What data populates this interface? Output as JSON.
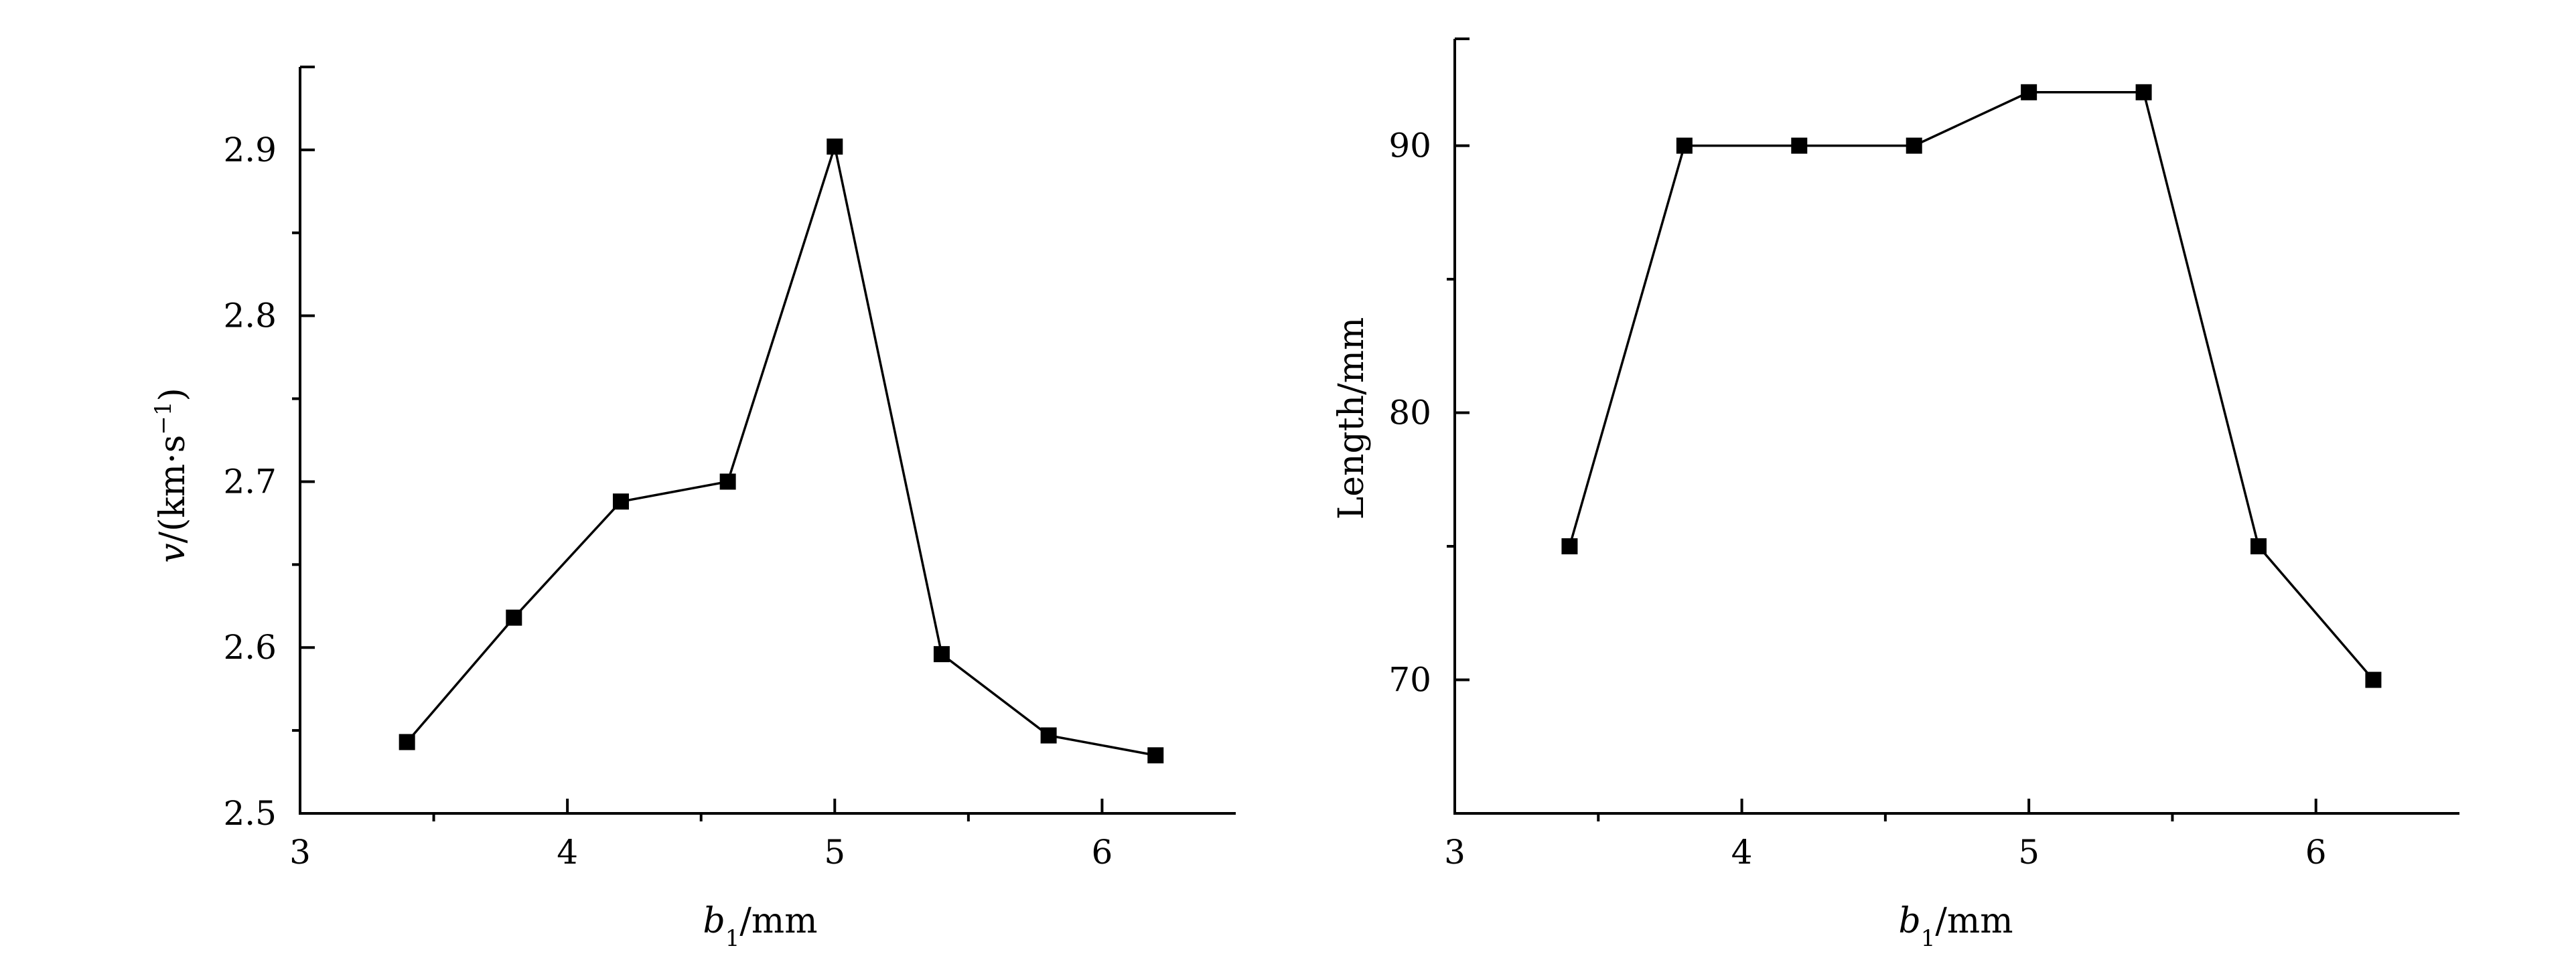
{
  "chart_data": [
    {
      "type": "line",
      "xlabel": {
        "main": "b",
        "sub": "1",
        "unit": "/mm"
      },
      "ylabel": {
        "main": "v",
        "rest": "/(km·s",
        "sup": "−1",
        "close": ")"
      },
      "xlim": [
        3,
        6.5
      ],
      "ylim": [
        2.5,
        2.95
      ],
      "xticks": [
        3,
        4,
        5,
        6
      ],
      "xtick_labels": [
        "3",
        "4",
        "5",
        "6"
      ],
      "xminor": [
        3.5,
        4.5,
        5.5
      ],
      "yticks": [
        2.5,
        2.6,
        2.7,
        2.8,
        2.9
      ],
      "ytick_labels": [
        "2.5",
        "2.6",
        "2.7",
        "2.8",
        "2.9"
      ],
      "yminor": [
        2.55,
        2.65,
        2.75,
        2.85
      ],
      "grid": false,
      "marker": "square",
      "color": "#000000",
      "series": [
        {
          "x": [
            3.4,
            3.8,
            4.2,
            4.6,
            5.0,
            5.4,
            5.8,
            6.2
          ],
          "y": [
            2.543,
            2.618,
            2.688,
            2.7,
            2.902,
            2.596,
            2.547,
            2.535
          ]
        }
      ]
    },
    {
      "type": "line",
      "xlabel": {
        "main": "b",
        "sub": "1",
        "unit": "/mm"
      },
      "ylabel": {
        "text": "Length/mm"
      },
      "xlim": [
        3,
        6.5
      ],
      "ylim": [
        65,
        94
      ],
      "xticks": [
        3,
        4,
        5,
        6
      ],
      "xtick_labels": [
        "3",
        "4",
        "5",
        "6"
      ],
      "xminor": [
        3.5,
        4.5,
        5.5
      ],
      "yticks": [
        70,
        80,
        90
      ],
      "ytick_labels": [
        "70",
        "80",
        "90"
      ],
      "yminor": [
        75,
        85
      ],
      "grid": false,
      "marker": "square",
      "color": "#000000",
      "series": [
        {
          "x": [
            3.4,
            3.8,
            4.2,
            4.6,
            5.0,
            5.4,
            5.8,
            6.2
          ],
          "y": [
            75,
            90,
            90,
            90,
            92,
            92,
            75,
            70
          ]
        }
      ]
    }
  ]
}
